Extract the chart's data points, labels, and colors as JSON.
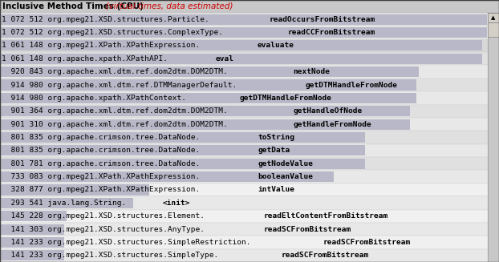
{
  "title_black": "Inclusive Method Times (CPU)",
  "title_red": "  (virtual times, data estimated)",
  "header_bg": "#c8c8c8",
  "scrollbar_color": "#c8c8c8",
  "rows": [
    {
      "indent": 0,
      "text_normal": "1 072 512 org.mpeg21.XSD.structures.Particle.",
      "text_bold": "readOccursFromBitstream",
      "bar_width": 1.0,
      "row_bg": "#e0e0e0"
    },
    {
      "indent": 0,
      "text_normal": "1 072 512 org.mpeg21.XSD.structures.ComplexType.",
      "text_bold": "readCCFromBitstream",
      "bar_width": 1.0,
      "row_bg": "#e8e8e8"
    },
    {
      "indent": 0,
      "text_normal": "1 061 148 org.mpeg21.XPath.XPathExpression.",
      "text_bold": "evaluate",
      "bar_width": 0.99,
      "row_bg": "#d8d8d8"
    },
    {
      "indent": 0,
      "text_normal": "1 061 148 org.apache.xpath.XPathAPI.",
      "text_bold": "eval",
      "bar_width": 0.99,
      "row_bg": "#e0e0e0"
    },
    {
      "indent": 1,
      "text_normal": "  920 843 org.apache.xml.dtm.ref.dom2dtm.DOM2DTM.",
      "text_bold": "nextNode",
      "bar_width": 0.86,
      "row_bg": "#e8e8e8"
    },
    {
      "indent": 1,
      "text_normal": "  914 980 org.apache.xml.dtm.ref.DTMManagerDefault.",
      "text_bold": "getDTMHandleFromNode",
      "bar_width": 0.855,
      "row_bg": "#e0e0e0"
    },
    {
      "indent": 1,
      "text_normal": "  914 980 org.apache.xpath.XPathContext.",
      "text_bold": "getDTMHandleFromNode",
      "bar_width": 0.855,
      "row_bg": "#e8e8e8"
    },
    {
      "indent": 1,
      "text_normal": "  901 364 org.apache.xml.dtm.ref.dom2dtm.DOM2DTM.",
      "text_bold": "getHandleOfNode",
      "bar_width": 0.842,
      "row_bg": "#e0e0e0"
    },
    {
      "indent": 1,
      "text_normal": "  901 310 org.apache.xml.dtm.ref.dom2dtm.DOM2DTM.",
      "text_bold": "getHandleFromNode",
      "bar_width": 0.842,
      "row_bg": "#e8e8e8"
    },
    {
      "indent": 1,
      "text_normal": "  801 835 org.apache.crimson.tree.DataNode.",
      "text_bold": "toString",
      "bar_width": 0.749,
      "row_bg": "#e0e0e0"
    },
    {
      "indent": 1,
      "text_normal": "  801 835 org.apache.crimson.tree.DataNode.",
      "text_bold": "getData",
      "bar_width": 0.749,
      "row_bg": "#e8e8e8"
    },
    {
      "indent": 1,
      "text_normal": "  801 781 org.apache.crimson.tree.DataNode.",
      "text_bold": "getNodeValue",
      "bar_width": 0.749,
      "row_bg": "#e0e0e0"
    },
    {
      "indent": 1,
      "text_normal": "  733 083 org.mpeg21.XPath.XPathExpression.",
      "text_bold": "booleanValue",
      "bar_width": 0.685,
      "row_bg": "#e8e8e8"
    },
    {
      "indent": 1,
      "text_normal": "  328 877 org.mpeg21.XPath.XPathExpression.",
      "text_bold": "intValue",
      "bar_width": 0.307,
      "row_bg": "#f0f0f0"
    },
    {
      "indent": 1,
      "text_normal": "  293 541 java.lang.String.",
      "text_bold": "<init>",
      "bar_width": 0.274,
      "row_bg": "#e8e8e8"
    },
    {
      "indent": 1,
      "text_normal": "  145 228 org.mpeg21.XSD.structures.Element.",
      "text_bold": "readEltContentFromBitstream",
      "bar_width": 0.136,
      "row_bg": "#f0f0f0"
    },
    {
      "indent": 1,
      "text_normal": "  141 303 org.mpeg21.XSD.structures.AnyType.",
      "text_bold": "readSCFromBitstream",
      "bar_width": 0.132,
      "row_bg": "#e8e8e8"
    },
    {
      "indent": 1,
      "text_normal": "  141 233 org.mpeg21.XSD.structures.SimpleRestriction.",
      "text_bold": "readSCFromBitstream",
      "bar_width": 0.132,
      "row_bg": "#f0f0f0"
    },
    {
      "indent": 1,
      "text_normal": "  141 233 org.mpeg21.XSD.structures.SimpleType.",
      "text_bold": "readSCFromBitstream",
      "bar_width": 0.132,
      "row_bg": "#e8e8e8"
    }
  ],
  "bar_color": "#b8b8c8",
  "border_color": "#808080",
  "text_color": "#000000",
  "fig_bg": "#ffffff",
  "fontsize": 6.8,
  "title_fontsize": 7.5
}
